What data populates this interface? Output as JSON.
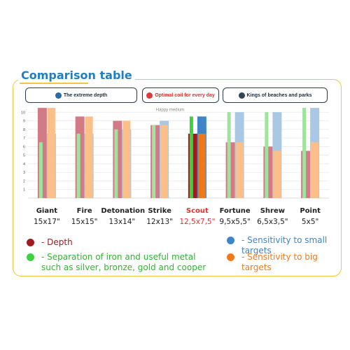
{
  "title": "Comparison table",
  "groups": [
    {
      "label": "The extreme depth",
      "icon": "arrow-down-icon"
    },
    {
      "label": "Optimal coil for every day",
      "icon": "calendar-icon"
    },
    {
      "label": "Kings of beaches and parks",
      "icon": "camera-icon"
    }
  ],
  "annotation": "Happy medium",
  "legend": [
    {
      "label": "- Depth",
      "color": "#9e1b23"
    },
    {
      "label": "- Sensitivity to small targets",
      "color": "#3d85c6"
    },
    {
      "label": "- Separation of iron and useful metal such as silver, bronze, gold and cooper",
      "color": "#3dd13d"
    },
    {
      "label": "- Sensitivity to big targets",
      "color": "#f07a1a"
    }
  ],
  "chart_data": {
    "type": "bar",
    "title": "Comparison table",
    "categories": [
      "Giant",
      "Fire",
      "Detonation",
      "Strike",
      "Scout",
      "Fortune",
      "Shrew",
      "Point"
    ],
    "sizes": [
      "15x17\"",
      "15x15\"",
      "13x14\"",
      "12x13\"",
      "12,5x7,5\"",
      "9,5x5,5\"",
      "6,5x3,5\"",
      "5x5\""
    ],
    "highlight_category": "Scout",
    "ylim": [
      0,
      11
    ],
    "y_ticks": [
      1,
      2,
      3,
      4,
      5,
      6,
      7,
      8,
      9,
      10
    ],
    "series": [
      {
        "name": "Depth",
        "values": [
          10.5,
          9.5,
          9,
          8.5,
          7.5,
          6.5,
          6,
          5.5
        ]
      },
      {
        "name": "Separation of iron and useful metal",
        "values": [
          6.5,
          7.5,
          8,
          8.5,
          9.5,
          10,
          10,
          10.5
        ]
      },
      {
        "name": "Sensitivity to small targets",
        "values": [
          7.5,
          7.5,
          8,
          9,
          9.5,
          10,
          10,
          10.5
        ]
      },
      {
        "name": "Sensitivity to big targets",
        "values": [
          10.5,
          9.5,
          9,
          8.5,
          7.5,
          6.5,
          5.5,
          6.5
        ]
      }
    ],
    "colors": {
      "depth": "#d27a86",
      "separation": "#9fe39f",
      "small": "#a8c8e4",
      "big": "#fbbf8a",
      "depth_hl": "#9e1b23",
      "separation_hl": "#3dd13d",
      "small_hl": "#3d85c6",
      "big_hl": "#f07a1a"
    },
    "grid": true
  }
}
